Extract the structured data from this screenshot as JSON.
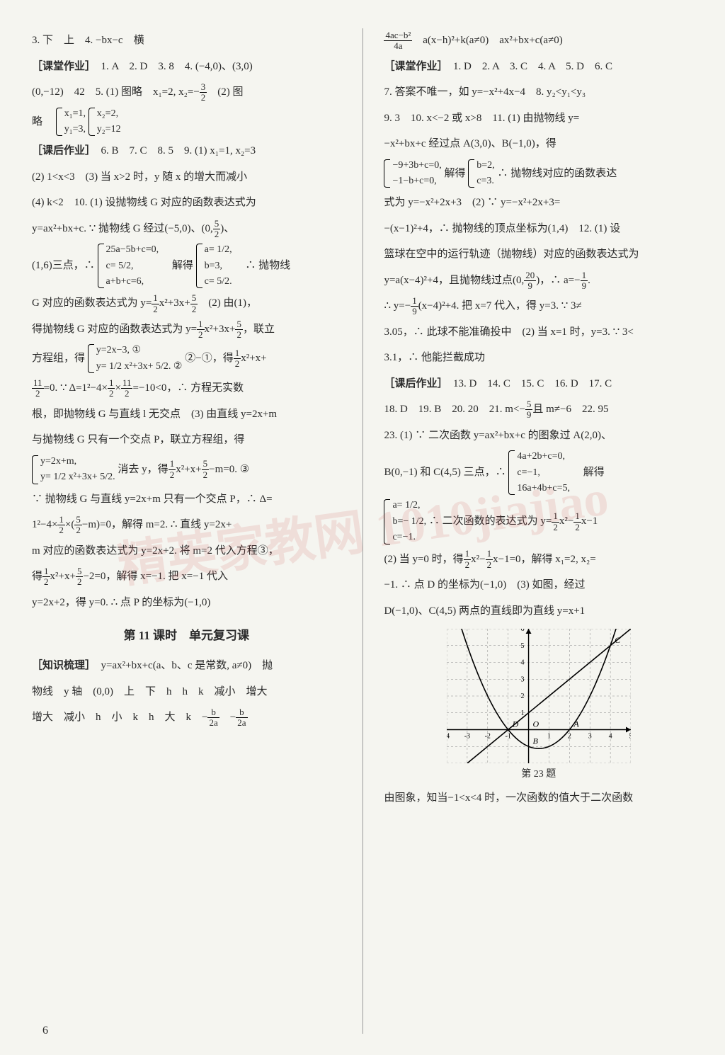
{
  "page_number": "6",
  "watermark": "精英家教网 1010jiajiao",
  "left": {
    "l1": "3. 下　上　4. −bx−c　横",
    "l2_label": "［课堂作业］",
    "l2": "　1. A　2. D　3. 8　4. (−4,0)、(3,0)",
    "l3a": "(0,−12)　42　5. (1) 图略　x₁=2, x₂=−",
    "l3_frac_n": "3",
    "l3_frac_d": "2",
    "l3b": "　(2) 图",
    "l4a": "略　",
    "l4_br1": "x₁=1,",
    "l4_br2": "y₁=3,",
    "l4_br3": "x₂=2,",
    "l4_br4": "y₂=12",
    "l5_label": "［课后作业］",
    "l5": "　6. B　7. C　8. 5　9. (1) x₁=1, x₂=3",
    "l6": "(2) 1<x<3　(3) 当 x>2 时，y 随 x 的增大而减小",
    "l7": "(4) k<2　10. (1) 设抛物线 G 对应的函数表达式为",
    "l8a": "y=ax²+bx+c. ∵ 抛物线 G 经过(−5,0)、(0,",
    "l8_frac_n": "5",
    "l8_frac_d": "2",
    "l8b": ")、",
    "l9a": "(1,6)三点，∴ ",
    "l9_eq1": "25a−5b+c=0,",
    "l9_eq2": "c= 5/2,",
    "l9_eq3": "a+b+c=6,",
    "l9b": "　解得",
    "l9_s1": "a= 1/2,",
    "l9_s2": "b=3,",
    "l9_s3": "c= 5/2.",
    "l9c": "　∴ 抛物线",
    "l10a": "G 对应的函数表达式为 y=",
    "l10_f1n": "1",
    "l10_f1d": "2",
    "l10b": "x²+3x+",
    "l10_f2n": "5",
    "l10_f2d": "2",
    "l10c": "　(2) 由(1)，",
    "l11a": "得抛物线 G 对应的函数表达式为 y=",
    "l11_f1n": "1",
    "l11_f1d": "2",
    "l11b": "x²+3x+",
    "l11_f2n": "5",
    "l11_f2d": "2",
    "l11c": "，联立",
    "l12a": "方程组，得",
    "l12_eq1": "y=2x−3, ①",
    "l12_eq2": "y= 1/2 x²+3x+ 5/2. ②",
    "l12b": "②−①，得",
    "l12_f1n": "1",
    "l12_f1d": "2",
    "l12c": "x²+x+",
    "l13_f1n": "11",
    "l13_f1d": "2",
    "l13a": "=0. ∵ Δ=1²−4×",
    "l13_f2n": "1",
    "l13_f2d": "2",
    "l13b": "×",
    "l13_f3n": "11",
    "l13_f3d": "2",
    "l13c": "=−10<0，∴ 方程无实数",
    "l14": "根，即抛物线 G 与直线 l 无交点　(3) 由直线 y=2x+m",
    "l15": "与抛物线 G 只有一个交点 P，联立方程组，得",
    "l16_eq1": "y=2x+m,",
    "l16_eq2": "y= 1/2 x²+3x+ 5/2.",
    "l16a": "消去 y，得",
    "l16_f1n": "1",
    "l16_f1d": "2",
    "l16b": "x²+x+",
    "l16_f2n": "5",
    "l16_f2d": "2",
    "l16c": "−m=0. ③",
    "l17": "∵ 抛物线 G 与直线 y=2x+m 只有一个交点 P，∴ Δ=",
    "l18a": "1²−4×",
    "l18_f1n": "1",
    "l18_f1d": "2",
    "l18b": "×(",
    "l18_f2n": "5",
    "l18_f2d": "2",
    "l18c": "−m)=0，解得 m=2. ∴ 直线 y=2x+",
    "l19": "m 对应的函数表达式为 y=2x+2. 将 m=2 代入方程③，",
    "l20a": "得",
    "l20_f1n": "1",
    "l20_f1d": "2",
    "l20b": "x²+x+",
    "l20_f2n": "5",
    "l20_f2d": "2",
    "l20c": "−2=0，解得 x=−1. 把 x=−1 代入",
    "l21": "y=2x+2，得 y=0. ∴ 点 P 的坐标为(−1,0)",
    "lesson_title": "第 11 课时　单元复习课",
    "l22_label": "［知识梳理］",
    "l22": "　y=ax²+bx+c(a、b、c 是常数, a≠0)　抛",
    "l23": "物线　y 轴　(0,0)　上　下　h　h　k　减小　增大",
    "l24a": "增大　减小　h　小　k　h　大　k　−",
    "l24_f1n": "b",
    "l24_f1d": "2a",
    "l24b": "　−",
    "l24_f2n": "b",
    "l24_f2d": "2a"
  },
  "right": {
    "r1_f1n": "4ac−b²",
    "r1_f1d": "4a",
    "r1": "　a(x−h)²+k(a≠0)　ax²+bx+c(a≠0)",
    "r2_label": "［课堂作业］",
    "r2": "　1. D　2. A　3. C　4. A　5. D　6. C",
    "r3": "7. 答案不唯一，如 y=−x²+4x−4　8. y₂<y₁<y₃",
    "r4": "9. 3　10. x<−2 或 x>8　11. (1) 由抛物线 y=",
    "r5": "−x²+bx+c 经过点 A(3,0)、B(−1,0)，得",
    "r6_eq1": "−9+3b+c=0,",
    "r6_eq2": "−1−b+c=0,",
    "r6a": "解得",
    "r6_s1": "b=2,",
    "r6_s2": "c=3.",
    "r6b": "∴ 抛物线对应的函数表达",
    "r7": "式为 y=−x²+2x+3　(2) ∵ y=−x²+2x+3=",
    "r8": "−(x−1)²+4，∴ 抛物线的顶点坐标为(1,4)　12. (1) 设",
    "r9": "篮球在空中的运行轨迹（抛物线）对应的函数表达式为",
    "r10a": "y=a(x−4)²+4，且抛物线过点(0,",
    "r10_f1n": "20",
    "r10_f1d": "9",
    "r10b": ")，∴ a=−",
    "r10_f2n": "1",
    "r10_f2d": "9",
    "r10c": ".",
    "r11a": "∴ y=−",
    "r11_f1n": "1",
    "r11_f1d": "9",
    "r11b": "(x−4)²+4. 把 x=7 代入，得 y=3. ∵ 3≠",
    "r12": "3.05，∴ 此球不能准确投中　(2) 当 x=1 时，y=3. ∵ 3<",
    "r13": "3.1，∴ 他能拦截成功",
    "r14_label": "［课后作业］",
    "r14": "　13. D　14. C　15. C　16. D　17. C",
    "r15a": "18. D　19. B　20. 20　21. m<−",
    "r15_f1n": "5",
    "r15_f1d": "9",
    "r15b": "且 m≠−6　22. 95",
    "r16": "23. (1) ∵ 二次函数 y=ax²+bx+c 的图象过 A(2,0)、",
    "r17a": "B(0,−1) 和 C(4,5) 三点，∴ ",
    "r17_eq1": "4a+2b+c=0,",
    "r17_eq2": "c=−1,",
    "r17_eq3": "16a+4b+c=5,",
    "r17b": "　解得",
    "r18_s1": "a= 1/2,",
    "r18_s2": "b=− 1/2,",
    "r18_s3": "c=−1.",
    "r18a": "∴ 二次函数的表达式为 y=",
    "r18_f1n": "1",
    "r18_f1d": "2",
    "r18b": "x²−",
    "r18_f2n": "1",
    "r18_f2d": "2",
    "r18c": "x−1",
    "r19a": "(2) 当 y=0 时，得",
    "r19_f1n": "1",
    "r19_f1d": "2",
    "r19b": "x²−",
    "r19_f2n": "1",
    "r19_f2d": "2",
    "r19c": "x−1=0，解得 x₁=2, x₂=",
    "r20": "−1. ∴ 点 D 的坐标为(−1,0)　(3) 如图，经过",
    "r21": "D(−1,0)、C(4,5) 两点的直线即为直线 y=x+1",
    "graph_caption": "第 23 题",
    "r22": "由图象，知当−1<x<4 时，一次函数的值大于二次函数"
  },
  "graph": {
    "xlim": [
      -4,
      5
    ],
    "ylim": [
      -2,
      6
    ],
    "xticks": [
      -4,
      -3,
      -2,
      -1,
      1,
      2,
      3,
      4,
      5
    ],
    "yticks": [
      1,
      2,
      3,
      4,
      5,
      6
    ],
    "axis_color": "#000000",
    "grid_color": "#888888",
    "curve_color": "#000000",
    "line_color": "#000000",
    "background_color": "#f5f5f0",
    "line_points": [
      [
        -3,
        -2
      ],
      [
        5,
        6
      ]
    ],
    "parabola_a": 0.5,
    "parabola_b": -0.5,
    "parabola_c": -1,
    "labels": {
      "A": [
        2,
        0
      ],
      "B": [
        0,
        -1
      ],
      "C": [
        4,
        5
      ],
      "D": [
        -1,
        0
      ],
      "O": [
        0,
        0
      ],
      "x": [
        5.3,
        0
      ],
      "y": [
        0,
        6.3
      ]
    }
  }
}
